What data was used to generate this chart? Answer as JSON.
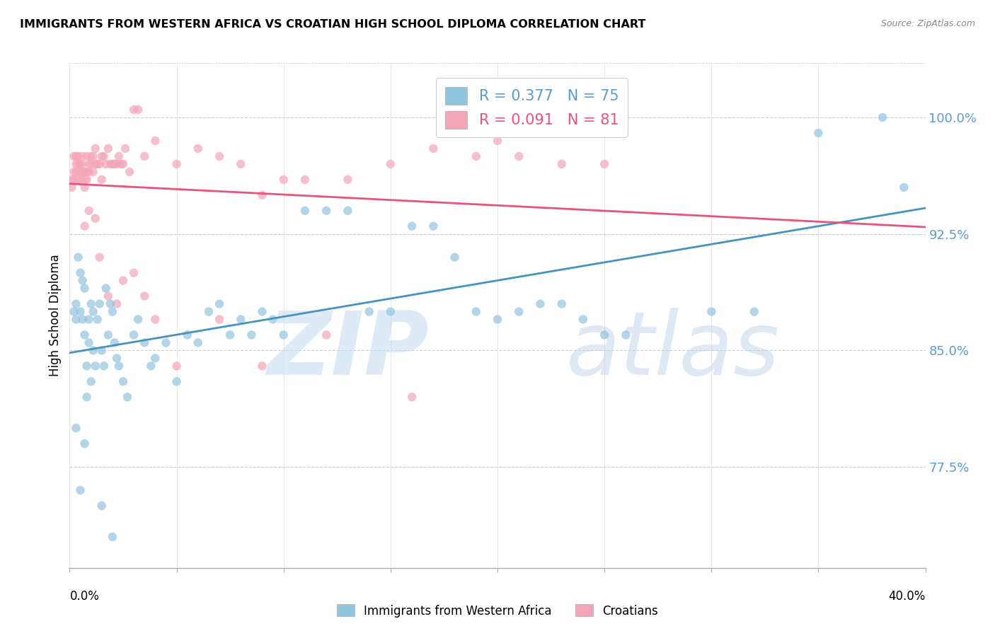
{
  "title": "IMMIGRANTS FROM WESTERN AFRICA VS CROATIAN HIGH SCHOOL DIPLOMA CORRELATION CHART",
  "source": "Source: ZipAtlas.com",
  "ylabel": "High School Diploma",
  "xlim": [
    0.0,
    0.4
  ],
  "ylim": [
    0.71,
    1.035
  ],
  "blue_R": 0.377,
  "blue_N": 75,
  "pink_R": 0.091,
  "pink_N": 81,
  "blue_color": "#92c5de",
  "pink_color": "#f4a5b8",
  "blue_line_color": "#4393c3",
  "pink_line_color": "#e8537a",
  "tick_color": "#5b9bd5",
  "legend_label_blue": "Immigrants from Western Africa",
  "legend_label_pink": "Croatians",
  "ytick_positions": [
    0.775,
    0.85,
    0.925,
    1.0
  ],
  "ytick_labels": [
    "77.5%",
    "85.0%",
    "92.5%",
    "100.0%"
  ],
  "xtick_positions": [
    0.0,
    0.05,
    0.1,
    0.15,
    0.2,
    0.25,
    0.3,
    0.35,
    0.4
  ],
  "blue_scatter_x": [
    0.002,
    0.003,
    0.003,
    0.004,
    0.005,
    0.005,
    0.006,
    0.006,
    0.007,
    0.007,
    0.008,
    0.008,
    0.009,
    0.009,
    0.01,
    0.011,
    0.011,
    0.012,
    0.013,
    0.014,
    0.015,
    0.016,
    0.017,
    0.018,
    0.019,
    0.02,
    0.021,
    0.022,
    0.023,
    0.025,
    0.027,
    0.03,
    0.032,
    0.035,
    0.038,
    0.04,
    0.045,
    0.05,
    0.055,
    0.06,
    0.065,
    0.07,
    0.075,
    0.08,
    0.085,
    0.09,
    0.095,
    0.1,
    0.11,
    0.12,
    0.13,
    0.14,
    0.15,
    0.16,
    0.17,
    0.18,
    0.19,
    0.2,
    0.21,
    0.22,
    0.23,
    0.24,
    0.25,
    0.26,
    0.3,
    0.32,
    0.35,
    0.38,
    0.39,
    0.003,
    0.005,
    0.007,
    0.01,
    0.015,
    0.02
  ],
  "blue_scatter_y": [
    0.875,
    0.88,
    0.87,
    0.91,
    0.9,
    0.875,
    0.895,
    0.87,
    0.89,
    0.86,
    0.84,
    0.82,
    0.855,
    0.87,
    0.88,
    0.85,
    0.875,
    0.84,
    0.87,
    0.88,
    0.85,
    0.84,
    0.89,
    0.86,
    0.88,
    0.875,
    0.855,
    0.845,
    0.84,
    0.83,
    0.82,
    0.86,
    0.87,
    0.855,
    0.84,
    0.845,
    0.855,
    0.83,
    0.86,
    0.855,
    0.875,
    0.88,
    0.86,
    0.87,
    0.86,
    0.875,
    0.87,
    0.86,
    0.94,
    0.94,
    0.94,
    0.875,
    0.875,
    0.93,
    0.93,
    0.91,
    0.875,
    0.87,
    0.875,
    0.88,
    0.88,
    0.87,
    0.86,
    0.86,
    0.875,
    0.875,
    0.99,
    1.0,
    0.955,
    0.8,
    0.76,
    0.79,
    0.83,
    0.75,
    0.73
  ],
  "pink_scatter_x": [
    0.001,
    0.001,
    0.002,
    0.002,
    0.002,
    0.003,
    0.003,
    0.003,
    0.004,
    0.004,
    0.004,
    0.005,
    0.005,
    0.005,
    0.006,
    0.006,
    0.006,
    0.007,
    0.007,
    0.007,
    0.008,
    0.008,
    0.008,
    0.009,
    0.009,
    0.01,
    0.01,
    0.011,
    0.011,
    0.012,
    0.012,
    0.013,
    0.014,
    0.015,
    0.016,
    0.017,
    0.018,
    0.019,
    0.02,
    0.021,
    0.022,
    0.023,
    0.024,
    0.025,
    0.026,
    0.028,
    0.03,
    0.032,
    0.035,
    0.04,
    0.05,
    0.06,
    0.07,
    0.08,
    0.09,
    0.1,
    0.11,
    0.13,
    0.15,
    0.17,
    0.19,
    0.21,
    0.23,
    0.25,
    0.015,
    0.018,
    0.022,
    0.025,
    0.03,
    0.035,
    0.04,
    0.05,
    0.07,
    0.09,
    0.12,
    0.16,
    0.2,
    0.007,
    0.009,
    0.012,
    0.014
  ],
  "pink_scatter_y": [
    0.955,
    0.96,
    0.96,
    0.965,
    0.975,
    0.965,
    0.97,
    0.975,
    0.975,
    0.97,
    0.96,
    0.97,
    0.96,
    0.965,
    0.975,
    0.965,
    0.97,
    0.96,
    0.955,
    0.965,
    0.96,
    0.965,
    0.975,
    0.965,
    0.97,
    0.97,
    0.975,
    0.965,
    0.975,
    0.97,
    0.98,
    0.97,
    0.97,
    0.96,
    0.975,
    0.97,
    0.98,
    0.97,
    0.97,
    0.97,
    0.97,
    0.975,
    0.97,
    0.97,
    0.98,
    0.965,
    1.005,
    1.005,
    0.975,
    0.985,
    0.97,
    0.98,
    0.975,
    0.97,
    0.95,
    0.96,
    0.96,
    0.96,
    0.97,
    0.98,
    0.975,
    0.975,
    0.97,
    0.97,
    0.975,
    0.885,
    0.88,
    0.895,
    0.9,
    0.885,
    0.87,
    0.84,
    0.87,
    0.84,
    0.86,
    0.82,
    0.985,
    0.93,
    0.94,
    0.935,
    0.91
  ]
}
